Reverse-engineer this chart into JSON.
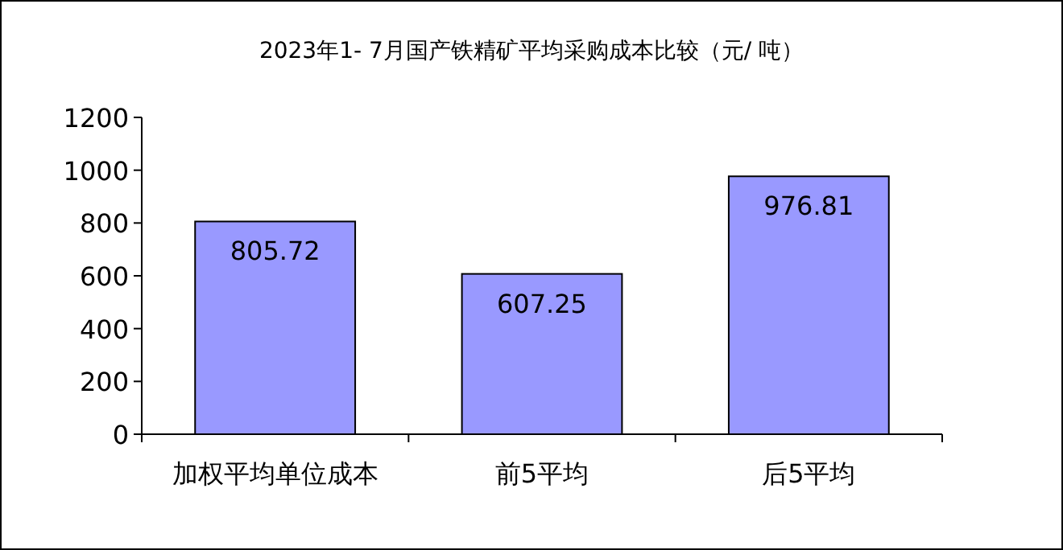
{
  "chart_data": {
    "type": "bar",
    "title": "2023年1- 7月国产铁精矿平均采购成本比较（元/ 吨）",
    "categories": [
      "加权平均单位成本",
      "前5平均",
      "后5平均"
    ],
    "values": [
      805.72,
      607.25,
      976.81
    ],
    "color": "#9999ff",
    "ylim": [
      0,
      1200
    ],
    "yticks": [
      0,
      200,
      400,
      600,
      800,
      1000,
      1200
    ],
    "data_labels": true,
    "grid": false
  }
}
